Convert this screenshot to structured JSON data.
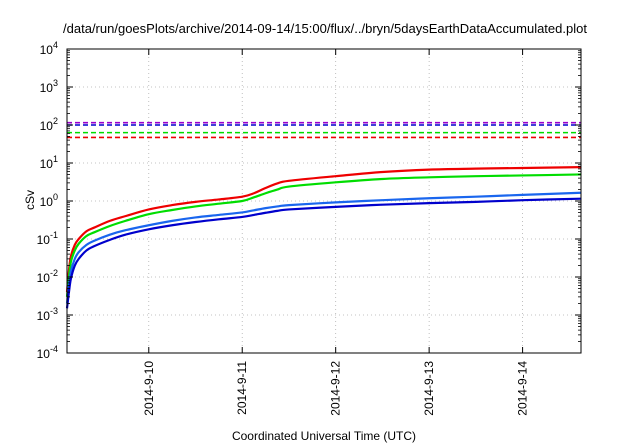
{
  "chart_data": {
    "type": "line",
    "title": "/data/run/goesPlots/archive/2014-09-14/15:00/flux/../bryn/5daysEarthDataAccumulated.plot",
    "xlabel": "Coordinated Universal Time (UTC)",
    "ylabel": "cSv",
    "yscale": "log",
    "ylim": [
      "1e-4",
      "1e4"
    ],
    "xlim": [
      "2014-09-09T03:00",
      "2014-09-14T15:00"
    ],
    "grid": true,
    "legend": "none",
    "y_ticks": [
      {
        "mant": "10",
        "exp": "-4",
        "value": 0.0001
      },
      {
        "mant": "10",
        "exp": "-3",
        "value": 0.001
      },
      {
        "mant": "10",
        "exp": "-2",
        "value": 0.01
      },
      {
        "mant": "10",
        "exp": "-1",
        "value": 0.1
      },
      {
        "mant": "10",
        "exp": "0",
        "value": 1
      },
      {
        "mant": "10",
        "exp": "1",
        "value": 10
      },
      {
        "mant": "10",
        "exp": "2",
        "value": 100
      },
      {
        "mant": "10",
        "exp": "3",
        "value": 1000
      },
      {
        "mant": "10",
        "exp": "4",
        "value": 10000
      }
    ],
    "x_ticks": [
      {
        "label": "2014-9-10",
        "date": "2014-09-10T00:00"
      },
      {
        "label": "2014-9-11",
        "date": "2014-09-11T00:00"
      },
      {
        "label": "2014-9-12",
        "date": "2014-09-12T00:00"
      },
      {
        "label": "2014-9-13",
        "date": "2014-09-13T00:00"
      },
      {
        "label": "2014-9-14",
        "date": "2014-09-14T00:00"
      }
    ],
    "thresholds": [
      {
        "color": "#9900cc",
        "value": 115
      },
      {
        "color": "#0000cc",
        "value": 100
      },
      {
        "color": "#00dd00",
        "value": 63
      },
      {
        "color": "#ee0000",
        "value": 47
      }
    ],
    "series": [
      {
        "color": "#ee0000",
        "x": [
          "2014-09-09T03:00",
          "2014-09-09T03:30",
          "2014-09-09T04:00",
          "2014-09-09T05:00",
          "2014-09-09T06:00",
          "2014-09-09T08:00",
          "2014-09-09T10:00",
          "2014-09-09T14:00",
          "2014-09-09T18:00",
          "2014-09-10T00:00",
          "2014-09-10T06:00",
          "2014-09-10T12:00",
          "2014-09-10T18:00",
          "2014-09-11T00:00",
          "2014-09-11T03:00",
          "2014-09-11T06:00",
          "2014-09-11T09:00",
          "2014-09-11T12:00",
          "2014-09-12T00:00",
          "2014-09-12T12:00",
          "2014-09-13T00:00",
          "2014-09-13T12:00",
          "2014-09-14T00:00",
          "2014-09-14T15:00"
        ],
        "values": [
          0.004,
          0.015,
          0.035,
          0.07,
          0.1,
          0.16,
          0.2,
          0.3,
          0.4,
          0.6,
          0.78,
          0.95,
          1.1,
          1.3,
          1.6,
          2.2,
          2.9,
          3.4,
          4.5,
          5.8,
          6.7,
          7.1,
          7.4,
          7.8
        ]
      },
      {
        "color": "#00dd00",
        "x": [
          "2014-09-09T03:00",
          "2014-09-09T03:30",
          "2014-09-09T04:00",
          "2014-09-09T05:00",
          "2014-09-09T06:00",
          "2014-09-09T08:00",
          "2014-09-09T10:00",
          "2014-09-09T14:00",
          "2014-09-09T18:00",
          "2014-09-10T00:00",
          "2014-09-10T06:00",
          "2014-09-10T12:00",
          "2014-09-10T18:00",
          "2014-09-11T00:00",
          "2014-09-11T03:00",
          "2014-09-11T06:00",
          "2014-09-11T09:00",
          "2014-09-11T12:00",
          "2014-09-12T00:00",
          "2014-09-12T12:00",
          "2014-09-13T00:00",
          "2014-09-13T12:00",
          "2014-09-14T00:00",
          "2014-09-14T15:00"
        ],
        "values": [
          0.003,
          0.01,
          0.025,
          0.05,
          0.075,
          0.12,
          0.15,
          0.22,
          0.3,
          0.45,
          0.58,
          0.72,
          0.85,
          1.0,
          1.25,
          1.6,
          2.0,
          2.4,
          3.1,
          3.8,
          4.2,
          4.5,
          4.7,
          5.0
        ]
      },
      {
        "color": "#1a66ee",
        "x": [
          "2014-09-09T03:00",
          "2014-09-09T03:30",
          "2014-09-09T04:00",
          "2014-09-09T05:00",
          "2014-09-09T06:00",
          "2014-09-09T08:00",
          "2014-09-09T10:00",
          "2014-09-09T14:00",
          "2014-09-09T18:00",
          "2014-09-10T00:00",
          "2014-09-10T06:00",
          "2014-09-10T12:00",
          "2014-09-10T18:00",
          "2014-09-11T00:00",
          "2014-09-11T03:00",
          "2014-09-11T06:00",
          "2014-09-11T09:00",
          "2014-09-11T12:00",
          "2014-09-12T00:00",
          "2014-09-12T12:00",
          "2014-09-13T00:00",
          "2014-09-13T12:00",
          "2014-09-14T00:00",
          "2014-09-14T15:00"
        ],
        "values": [
          0.002,
          0.006,
          0.014,
          0.03,
          0.045,
          0.07,
          0.09,
          0.13,
          0.17,
          0.23,
          0.3,
          0.37,
          0.43,
          0.5,
          0.57,
          0.65,
          0.72,
          0.78,
          0.92,
          1.05,
          1.18,
          1.3,
          1.45,
          1.65
        ]
      },
      {
        "color": "#0000cc",
        "x": [
          "2014-09-09T03:00",
          "2014-09-09T03:30",
          "2014-09-09T04:00",
          "2014-09-09T05:00",
          "2014-09-09T06:00",
          "2014-09-09T08:00",
          "2014-09-09T10:00",
          "2014-09-09T14:00",
          "2014-09-09T18:00",
          "2014-09-10T00:00",
          "2014-09-10T06:00",
          "2014-09-10T12:00",
          "2014-09-10T18:00",
          "2014-09-11T00:00",
          "2014-09-11T03:00",
          "2014-09-11T06:00",
          "2014-09-11T09:00",
          "2014-09-11T12:00",
          "2014-09-12T00:00",
          "2014-09-12T12:00",
          "2014-09-13T00:00",
          "2014-09-13T12:00",
          "2014-09-14T00:00",
          "2014-09-14T15:00"
        ],
        "values": [
          0.0015,
          0.004,
          0.009,
          0.02,
          0.03,
          0.05,
          0.065,
          0.095,
          0.13,
          0.18,
          0.23,
          0.28,
          0.33,
          0.38,
          0.43,
          0.49,
          0.55,
          0.6,
          0.7,
          0.8,
          0.88,
          0.95,
          1.05,
          1.15
        ]
      }
    ]
  }
}
